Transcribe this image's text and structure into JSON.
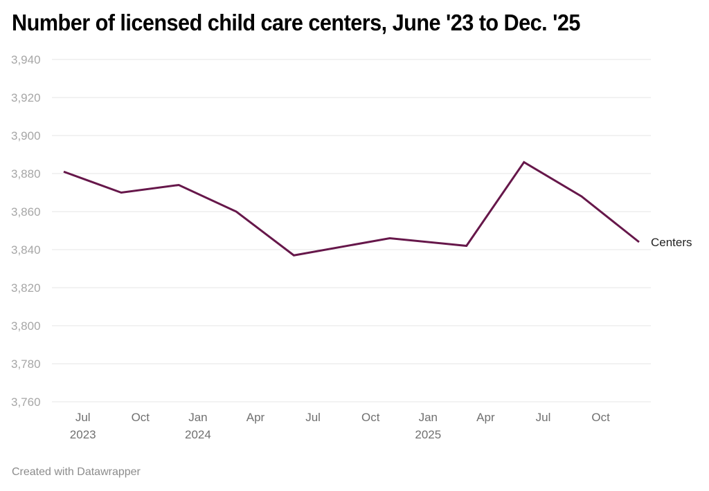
{
  "chart_data": {
    "type": "line",
    "title": "Number of licensed child care centers, June '23 to Dec. '25",
    "xlabel": "",
    "ylabel": "",
    "ylim": [
      3760,
      3940
    ],
    "yticks": [
      3940,
      3920,
      3900,
      3880,
      3860,
      3840,
      3820,
      3800,
      3780,
      3760
    ],
    "ytick_labels": [
      "3,940",
      "3,920",
      "3,900",
      "3,880",
      "3,860",
      "3,840",
      "3,820",
      "3,800",
      "3,780",
      "3,760"
    ],
    "xlim": [
      "2023-06",
      "2025-12"
    ],
    "xticks": [
      {
        "date": "2023-07",
        "label": "Jul",
        "year": "2023"
      },
      {
        "date": "2023-10",
        "label": "Oct",
        "year": ""
      },
      {
        "date": "2024-01",
        "label": "Jan",
        "year": "2024"
      },
      {
        "date": "2024-04",
        "label": "Apr",
        "year": ""
      },
      {
        "date": "2024-07",
        "label": "Jul",
        "year": ""
      },
      {
        "date": "2024-10",
        "label": "Oct",
        "year": ""
      },
      {
        "date": "2025-01",
        "label": "Jan",
        "year": "2025"
      },
      {
        "date": "2025-04",
        "label": "Apr",
        "year": ""
      },
      {
        "date": "2025-07",
        "label": "Jul",
        "year": ""
      },
      {
        "date": "2025-10",
        "label": "Oct",
        "year": ""
      }
    ],
    "grid": true,
    "series": [
      {
        "name": "Centers",
        "color": "#66174a",
        "x": [
          "2023-06",
          "2023-09",
          "2023-12",
          "2024-03",
          "2024-06",
          "2024-11",
          "2025-03",
          "2025-06",
          "2025-09",
          "2025-12"
        ],
        "values": [
          3881,
          3870,
          3874,
          3860,
          3837,
          3846,
          3842,
          3886,
          3868,
          3844
        ]
      }
    ],
    "legend": "inline-end-label"
  },
  "footer": {
    "credit": "Created with Datawrapper"
  },
  "colors": {
    "line": "#66174a",
    "grid": "#e5e5e5",
    "ytick": "#a6a6a6",
    "xtick": "#707070"
  }
}
